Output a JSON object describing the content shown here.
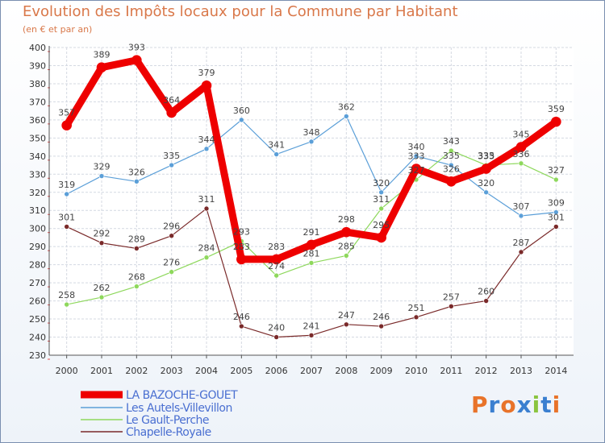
{
  "header": {
    "title": "Evolution des Impôts locaux pour la Commune par Habitant",
    "subtitle": "(en € et par an)"
  },
  "logo": {
    "text": "Proxiti"
  },
  "chart_data": {
    "type": "line",
    "title": "Evolution des Impôts locaux pour la Commune par Habitant",
    "subtitle": "(en € et par an)",
    "xlabel": "",
    "ylabel": "",
    "categories": [
      "2000",
      "2001",
      "2002",
      "2003",
      "2004",
      "2005",
      "2006",
      "2007",
      "2008",
      "2009",
      "2010",
      "2011",
      "2012",
      "2013",
      "2014"
    ],
    "ylim": [
      230,
      400
    ],
    "yticks": [
      230,
      240,
      250,
      260,
      270,
      280,
      290,
      300,
      310,
      320,
      330,
      340,
      350,
      360,
      370,
      380,
      390,
      400
    ],
    "grid": true,
    "legend_position": "bottom-left",
    "series": [
      {
        "name": "LA BAZOCHE-GOUET",
        "color": "#ee0000",
        "width": 9,
        "values": [
          357,
          389,
          393,
          364,
          379,
          283,
          283,
          291,
          298,
          295,
          333,
          326,
          333,
          345,
          359
        ]
      },
      {
        "name": "Les Autels-Villevillon",
        "color": "#5b9fd8",
        "width": 1.2,
        "values": [
          319,
          329,
          326,
          335,
          344,
          360,
          341,
          348,
          362,
          320,
          340,
          335,
          320,
          307,
          309
        ]
      },
      {
        "name": "Le Gault-Perche",
        "color": "#8ed85c",
        "width": 1.2,
        "values": [
          258,
          262,
          268,
          276,
          284,
          293,
          274,
          281,
          285,
          311,
          327,
          343,
          335,
          336,
          327
        ]
      },
      {
        "name": "Chapelle-Royale",
        "color": "#7a2a2a",
        "width": 1.2,
        "values": [
          301,
          292,
          289,
          296,
          311,
          246,
          240,
          241,
          247,
          246,
          251,
          257,
          260,
          287,
          301
        ]
      }
    ]
  }
}
